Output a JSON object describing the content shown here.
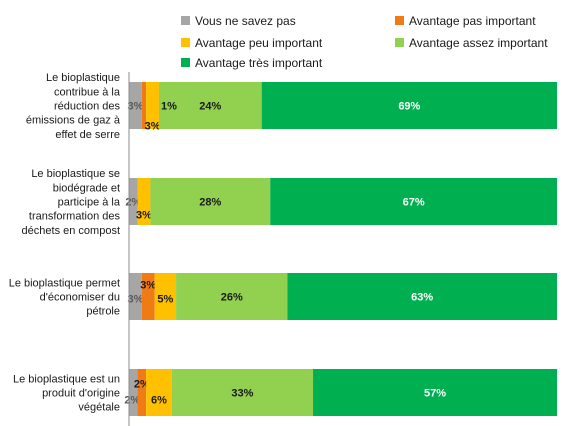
{
  "chart_data": {
    "type": "bar",
    "orientation": "horizontal",
    "stacked": true,
    "unit": "%",
    "legend_position": "top",
    "grid": false,
    "xlim": [
      0,
      100
    ],
    "categories": [
      "Le bioplastique contribue à la réduction des émissions de gaz à effet de serre",
      "Le bioplastique se biodégrade et participe à la transformation des déchets en compost",
      "Le bioplastique permet d'économiser du pétrole",
      "Le bioplastique est un produit d'origine végétale"
    ],
    "category_lines": [
      [
        "Le bioplastique",
        "contribue à la",
        "réduction des",
        "émissions de gaz à",
        "effet de serre"
      ],
      [
        "Le bioplastique se",
        "biodégrade et",
        "participe à la",
        "transformation des",
        "déchets en compost"
      ],
      [
        "Le bioplastique permet",
        "d'économiser du",
        "pétrole"
      ],
      [
        "Le bioplastique est un",
        "produit d'origine",
        "végétale"
      ]
    ],
    "series": [
      {
        "name": "Vous ne savez pas",
        "color": "#a6a6a6",
        "values": [
          3,
          2,
          3,
          2
        ],
        "labels": [
          "3%",
          "2%",
          "3%",
          "2%"
        ]
      },
      {
        "name": "Avantage pas important",
        "color": "#f07a13",
        "values": [
          1,
          0,
          3,
          2
        ],
        "labels": [
          "",
          "",
          "3%",
          "2%"
        ]
      },
      {
        "name": "Avantage peu important",
        "color": "#ffc000",
        "values": [
          3,
          3,
          5,
          6
        ],
        "labels": [
          "3%",
          "3%",
          "5%",
          "6%"
        ]
      },
      {
        "name": "Avantage assez important",
        "color": "#92d050",
        "values": [
          24,
          28,
          26,
          33
        ],
        "labels": [
          "24%",
          "28%",
          "26%",
          "33%"
        ]
      },
      {
        "name": "Avantage très important",
        "color": "#00b050",
        "values": [
          69,
          67,
          63,
          57
        ],
        "labels": [
          "69%",
          "67%",
          "63%",
          "57%"
        ]
      }
    ],
    "extra_labels": [
      {
        "category_index": 0,
        "text": "1%"
      }
    ]
  }
}
